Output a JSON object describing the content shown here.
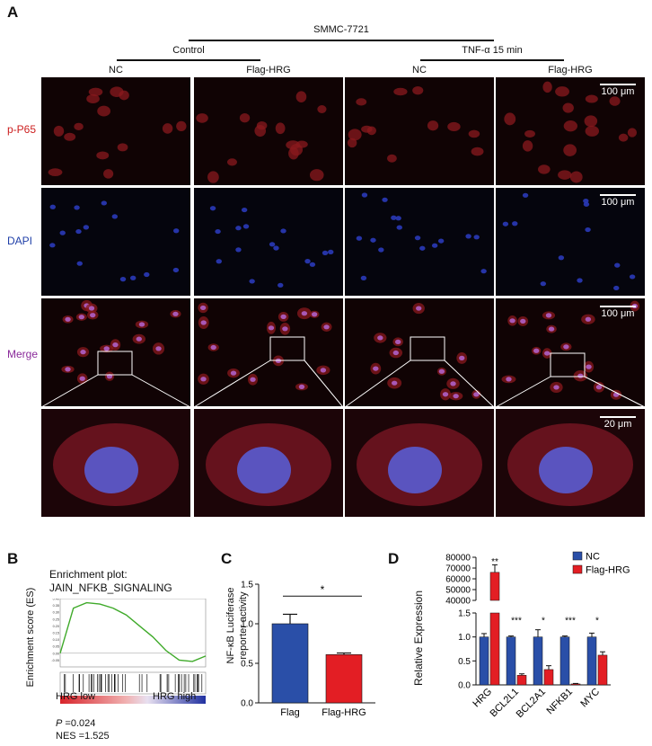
{
  "panel_a": {
    "label": "A",
    "cell_line": "SMMC-7721",
    "group_control": "Control",
    "group_tnf": "TNF-α 15 min",
    "columns": [
      "NC",
      "Flag-HRG",
      "NC",
      "Flag-HRG"
    ],
    "rows": [
      {
        "label": "p-P65",
        "color": "#cc1f1f"
      },
      {
        "label": "DAPI",
        "color": "#1f3fa8"
      },
      {
        "label": "Merge",
        "color": "#8a2a9a"
      }
    ],
    "scale_100": "100 μm",
    "scale_20": "20 μm"
  },
  "panel_b": {
    "label": "B",
    "title_line1": "Enrichment plot:",
    "title_line2": "JAIN_NFKB_SIGNALING",
    "ylabel": "Enrichment score (ES)",
    "low_label": "HRG low",
    "high_label": "HRG high",
    "p_label": "P",
    "p_value": " =0.024",
    "nes": "NES =1.525"
  },
  "panel_c": {
    "label": "C",
    "ylabel_line1": "NF-κB Luciferase",
    "ylabel_line2": "reporter activity",
    "sig": "*",
    "ticks": [
      "0.0",
      "0.5",
      "1.0",
      "1.5"
    ]
  },
  "panel_d": {
    "label": "D",
    "ylabel": "Relative Expression",
    "ticks_top": [
      "80000",
      "70000",
      "60000",
      "50000",
      "40000"
    ],
    "ticks_bottom": [
      "1.5",
      "1.0",
      "0.5",
      "0.0"
    ],
    "legend_nc": "NC",
    "legend_flag": "Flag-HRG",
    "sig": [
      "**",
      "***",
      "*",
      "***",
      "*"
    ]
  },
  "colors": {
    "nc": "#2a4fa8",
    "flag": "#e31e24",
    "gsea_line": "#3faa2a"
  },
  "chart_data": [
    {
      "type": "bar",
      "panel": "C",
      "categories": [
        "Flag",
        "Flag-HRG"
      ],
      "values": [
        1.0,
        0.61
      ],
      "errors": [
        0.12,
        0.02
      ],
      "ylim": [
        0,
        1.5
      ],
      "ylabel": "NF-κB Luciferase reporter activity",
      "significance": "*"
    },
    {
      "type": "bar",
      "panel": "D",
      "categories": [
        "HRG",
        "BCL2L1",
        "BCL2A1",
        "NFKB1",
        "MYC"
      ],
      "series": [
        {
          "name": "NC",
          "values": [
            1.0,
            1.0,
            1.0,
            1.0,
            1.0
          ],
          "errors": [
            0.07,
            0.02,
            0.15,
            0.02,
            0.08
          ]
        },
        {
          "name": "Flag-HRG",
          "values": [
            66000,
            0.2,
            0.32,
            0.02,
            0.62
          ],
          "errors": [
            7000,
            0.03,
            0.08,
            0.01,
            0.07
          ]
        }
      ],
      "ylabel": "Relative Expression",
      "y_break": [
        1.5,
        40000
      ],
      "ylim_bottom": [
        0,
        1.5
      ],
      "ylim_top": [
        40000,
        80000
      ],
      "legend": "top-right",
      "significance": [
        "**",
        "***",
        "*",
        "***",
        "*"
      ]
    },
    {
      "type": "line",
      "panel": "B",
      "title": "Enrichment plot: JAIN_NFKB_SIGNALING",
      "ylabel": "Enrichment score (ES)",
      "y": [
        0.0,
        0.33,
        0.37,
        0.36,
        0.33,
        0.28,
        0.2,
        0.12,
        0.02,
        -0.05,
        -0.06,
        -0.02
      ],
      "ylim": [
        -0.1,
        0.4
      ],
      "y_ticks": [
        "0.40",
        "0.35",
        "0.30",
        "0.25",
        "0.20",
        "0.15",
        "0.10",
        "0.05",
        "0.00",
        "-0.05"
      ]
    }
  ]
}
